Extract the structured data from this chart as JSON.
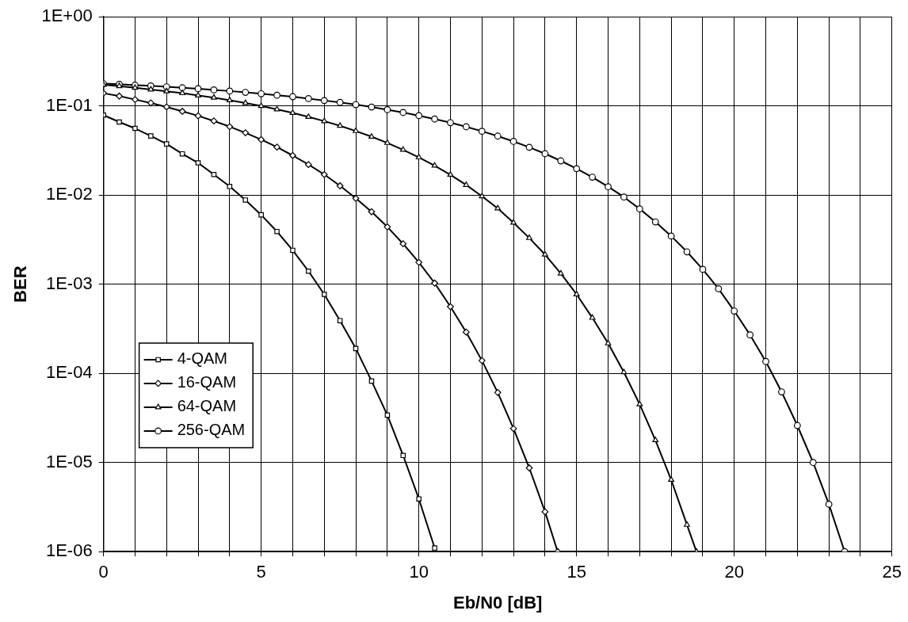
{
  "chart_data": {
    "type": "line",
    "xlabel": "Eb/N0 [dB]",
    "ylabel": "BER",
    "log": "y",
    "grid": true,
    "legend": "left",
    "line_style": "solid",
    "xlim": [
      0,
      25
    ],
    "xticks": [
      0,
      {
        "value": 1,
        "label": null
      },
      {
        "value": 2,
        "label": null
      },
      {
        "value": 3,
        "label": null
      },
      {
        "value": 4,
        "label": null
      },
      5,
      {
        "value": 6,
        "label": null
      },
      {
        "value": 7,
        "label": null
      },
      {
        "value": 8,
        "label": null
      },
      {
        "value": 9,
        "label": null
      },
      10,
      {
        "value": 11,
        "label": null
      },
      {
        "value": 12,
        "label": null
      },
      {
        "value": 13,
        "label": null
      },
      {
        "value": 14,
        "label": null
      },
      15,
      {
        "value": 16,
        "label": null
      },
      {
        "value": 17,
        "label": null
      },
      {
        "value": 18,
        "label": null
      },
      {
        "value": 19,
        "label": null
      },
      20,
      {
        "value": 21,
        "label": null
      },
      {
        "value": 22,
        "label": null
      },
      {
        "value": 23,
        "label": null
      },
      {
        "value": 24,
        "label": null
      },
      25
    ],
    "ylim": [
      1e-06,
      1
    ],
    "yticks": [
      {
        "value": 1,
        "label": "1E+00"
      },
      {
        "value": 0.1,
        "label": "1E-01"
      },
      {
        "value": 0.01,
        "label": "1E-02"
      },
      {
        "value": 0.001,
        "label": "1E-03"
      },
      {
        "value": 0.0001,
        "label": "1E-04"
      },
      {
        "value": 1e-05,
        "label": "1E-05"
      },
      {
        "value": 1e-06,
        "label": "1E-06"
      }
    ],
    "series": [
      {
        "name": "4-QAM",
        "color": "#000000",
        "marker": "square",
        "x": [
          0,
          0.5,
          1,
          1.5,
          2,
          2.5,
          3,
          3.5,
          4,
          4.5,
          5,
          5.5,
          6,
          6.5,
          7,
          7.5,
          8,
          8.5,
          9,
          9.5,
          10,
          10.5
        ],
        "values": [
          0.079,
          0.066,
          0.056,
          0.046,
          0.0375,
          0.029,
          0.023,
          0.017,
          0.0125,
          0.0088,
          0.006,
          0.0039,
          0.0024,
          0.0014,
          0.00077,
          0.00039,
          0.00019,
          8.2e-05,
          3.4e-05,
          1.2e-05,
          3.9e-06,
          1.1e-06
        ]
      },
      {
        "name": "16-QAM",
        "color": "#000000",
        "marker": "diamond",
        "x": [
          0,
          0.5,
          1,
          1.5,
          2,
          2.5,
          3,
          3.5,
          4,
          4.5,
          5,
          5.5,
          6,
          6.5,
          7,
          7.5,
          8,
          8.5,
          9,
          9.5,
          10,
          10.5,
          11,
          11.5,
          12,
          12.5,
          13,
          13.5,
          14,
          14.4
        ],
        "values": [
          0.139,
          0.129,
          0.118,
          0.108,
          0.0975,
          0.087,
          0.0775,
          0.0678,
          0.0586,
          0.05,
          0.0419,
          0.0345,
          0.0278,
          0.022,
          0.017,
          0.0127,
          0.0092,
          0.0065,
          0.0044,
          0.00284,
          0.00176,
          0.00103,
          0.00056,
          0.00029,
          0.000139,
          6.1e-05,
          2.4e-05,
          8.7e-06,
          2.8e-06,
          1e-06
        ]
      },
      {
        "name": "64-QAM",
        "color": "#000000",
        "marker": "triangle",
        "x": [
          0,
          0.5,
          1,
          1.5,
          2,
          2.5,
          3,
          3.5,
          4,
          4.5,
          5,
          5.5,
          6,
          6.5,
          7,
          7.5,
          8,
          8.5,
          9,
          9.5,
          10,
          10.5,
          11,
          11.5,
          12,
          12.5,
          13,
          13.5,
          14,
          14.5,
          15,
          15.5,
          16,
          16.5,
          17,
          17.5,
          18,
          18.5,
          18.8
        ],
        "values": [
          0.173,
          0.167,
          0.16,
          0.153,
          0.146,
          0.139,
          0.131,
          0.124,
          0.116,
          0.108,
          0.0998,
          0.0916,
          0.0834,
          0.0754,
          0.0675,
          0.0598,
          0.0523,
          0.0452,
          0.0385,
          0.0322,
          0.0265,
          0.0214,
          0.0169,
          0.013,
          0.0097,
          0.0071,
          0.0049,
          0.0033,
          0.00215,
          0.00132,
          0.00077,
          0.00042,
          0.000217,
          0.000103,
          4.5e-05,
          1.78e-05,
          6.4e-06,
          2e-06,
          1e-06
        ]
      },
      {
        "name": "256-QAM",
        "color": "#000000",
        "marker": "circle",
        "x": [
          0,
          0.5,
          1,
          1.5,
          2,
          2.5,
          3,
          3.5,
          4,
          4.5,
          5,
          5.5,
          6,
          6.5,
          7,
          7.5,
          8,
          8.5,
          9,
          9.5,
          10,
          10.5,
          11,
          11.5,
          12,
          12.5,
          13,
          13.5,
          14,
          14.5,
          15,
          15.5,
          16,
          16.5,
          17,
          17.5,
          18,
          18.5,
          19,
          19.5,
          20,
          20.5,
          21,
          21.5,
          22,
          22.5,
          23,
          23.5
        ],
        "values": [
          0.178,
          0.175,
          0.171,
          0.168,
          0.164,
          0.16,
          0.156,
          0.1515,
          0.147,
          0.142,
          0.137,
          0.132,
          0.127,
          0.121,
          0.115,
          0.1096,
          0.1034,
          0.0972,
          0.0908,
          0.0844,
          0.0779,
          0.0713,
          0.0649,
          0.0584,
          0.052,
          0.0459,
          0.04,
          0.0344,
          0.0291,
          0.0242,
          0.0198,
          0.0159,
          0.0124,
          0.0095,
          0.007,
          0.005,
          0.00347,
          0.00231,
          0.00147,
          0.00089,
          0.0005,
          0.00027,
          0.000136,
          6.2e-05,
          2.6e-05,
          1e-05,
          3.4e-06,
          1e-06
        ]
      }
    ]
  }
}
